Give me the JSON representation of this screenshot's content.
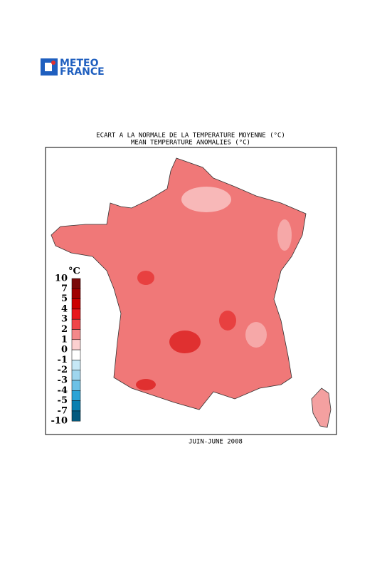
{
  "logo": {
    "line1": "METEO",
    "line2": "FRANCE"
  },
  "map": {
    "title": "ECART A LA NORMALE DE LA TEMPERATURE MOYENNE (°C)",
    "subtitle": "MEAN TEMPERATURE ANOMALIES (°C)",
    "caption": "JUIN-JUNE 2008",
    "legend": {
      "unit": "°C",
      "labels": [
        "10",
        "7",
        "5",
        "4",
        "3",
        "2",
        "1",
        "0",
        "-1",
        "-2",
        "-3",
        "-4",
        "-5",
        "-7",
        "-10"
      ],
      "colors": [
        "#7a0a0a",
        "#a00000",
        "#cc0000",
        "#e8161b",
        "#f0464a",
        "#f4888a",
        "#fbd0d0",
        "#ffffff",
        "#c6e8f6",
        "#9fd6ee",
        "#6cc1e6",
        "#2aa3d6",
        "#0a7fb0",
        "#045a7e"
      ]
    }
  }
}
